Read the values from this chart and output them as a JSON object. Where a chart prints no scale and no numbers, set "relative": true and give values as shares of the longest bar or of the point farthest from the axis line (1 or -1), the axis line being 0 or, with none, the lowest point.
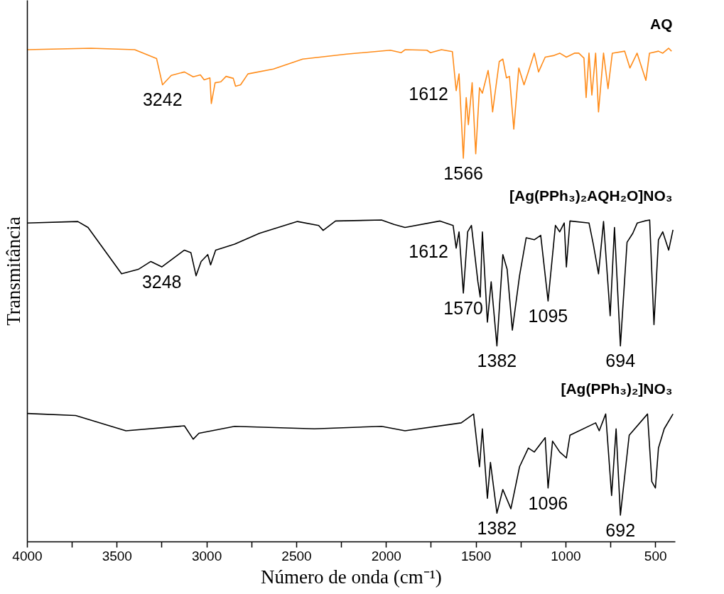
{
  "chart_data": {
    "type": "line",
    "relative": true,
    "xlabel": "Número de onda (cm⁻¹)",
    "ylabel": "Transmitância",
    "xlim": [
      4000,
      390
    ],
    "xticks": [
      4000,
      {
        "value": 3750,
        "label": null
      },
      3500,
      {
        "value": 3250,
        "label": null
      },
      3000,
      {
        "value": 2750,
        "label": null
      },
      2500,
      {
        "value": 2250,
        "label": null
      },
      2000,
      {
        "value": 1750,
        "label": null
      },
      1500,
      {
        "value": 1250,
        "label": null
      },
      1000,
      {
        "value": 750,
        "label": null
      },
      500
    ],
    "grid": false,
    "marker": "none",
    "line_style": "solid",
    "series": [
      {
        "name": "AQ",
        "color": "#ff8c1a",
        "x": [
          4000,
          3646,
          3402,
          3280,
          3247,
          3198,
          3125,
          3076,
          3036,
          3015,
          2983,
          2975,
          2954,
          2922,
          2893,
          2853,
          2840,
          2812,
          2771,
          2629,
          2466,
          2222,
          1978,
          1917,
          1896,
          1774,
          1754,
          1693,
          1632,
          1611,
          1595,
          1571,
          1555,
          1543,
          1522,
          1502,
          1481,
          1465,
          1433,
          1420,
          1408,
          1371,
          1351,
          1331,
          1314,
          1290,
          1262,
          1233,
          1209,
          1176,
          1152,
          1115,
          1070,
          1034,
          997,
          952,
          928,
          899,
          887,
          871,
          855,
          834,
          818,
          790,
          765,
          741,
          672,
          643,
          603,
          554,
          534,
          484,
          460,
          427,
          411
        ],
        "values": [
          0.997,
          1.0,
          0.997,
          0.979,
          0.926,
          0.945,
          0.952,
          0.942,
          0.946,
          0.936,
          0.94,
          0.888,
          0.93,
          0.932,
          0.943,
          0.939,
          0.923,
          0.926,
          0.948,
          0.958,
          0.978,
          0.988,
          0.996,
          0.991,
          0.997,
          0.996,
          0.991,
          0.997,
          0.993,
          0.914,
          0.948,
          0.777,
          0.9,
          0.845,
          0.93,
          0.786,
          0.92,
          0.909,
          0.955,
          0.92,
          0.871,
          0.973,
          0.978,
          0.94,
          0.943,
          0.836,
          0.96,
          0.926,
          0.952,
          0.99,
          0.952,
          0.982,
          0.985,
          0.99,
          0.982,
          0.99,
          0.99,
          0.98,
          0.9,
          0.99,
          0.905,
          0.99,
          0.871,
          0.99,
          0.918,
          0.99,
          0.994,
          0.96,
          0.99,
          0.935,
          0.99,
          0.994,
          0.99,
          1.0,
          0.994
        ]
      },
      {
        "name": "[Ag(PPh₃)₂AQH₂O]NO₃",
        "color": "#000000",
        "x": [
          4000,
          3719,
          3662,
          3475,
          3382,
          3312,
          3251,
          3125,
          3089,
          3060,
          3032,
          2995,
          2979,
          2951,
          2845,
          2707,
          2495,
          2377,
          2352,
          2283,
          2027,
          1957,
          1896,
          1701,
          1628,
          1611,
          1595,
          1571,
          1547,
          1526,
          1490,
          1477,
          1465,
          1437,
          1416,
          1384,
          1351,
          1327,
          1298,
          1258,
          1221,
          1176,
          1140,
          1099,
          1058,
          1034,
          1009,
          997,
          977,
          871,
          847,
          818,
          790,
          753,
          729,
          696,
          659,
          627,
          602,
          562,
          533,
          509,
          484,
          460,
          427,
          403
        ],
        "values": [
          0.646,
          0.649,
          0.637,
          0.543,
          0.552,
          0.568,
          0.557,
          0.591,
          0.586,
          0.539,
          0.568,
          0.582,
          0.561,
          0.591,
          0.603,
          0.625,
          0.649,
          0.641,
          0.631,
          0.65,
          0.652,
          0.643,
          0.637,
          0.65,
          0.641,
          0.595,
          0.628,
          0.504,
          0.628,
          0.641,
          0.527,
          0.496,
          0.628,
          0.445,
          0.527,
          0.397,
          0.582,
          0.552,
          0.429,
          0.539,
          0.616,
          0.612,
          0.621,
          0.488,
          0.641,
          0.628,
          0.646,
          0.557,
          0.65,
          0.646,
          0.603,
          0.543,
          0.649,
          0.458,
          0.637,
          0.397,
          0.607,
          0.625,
          0.646,
          0.65,
          0.652,
          0.44,
          0.612,
          0.628,
          0.591,
          0.632
        ]
      },
      {
        "name": "[Ag(PPh₃)₂]NO₃",
        "color": "#000000",
        "x": [
          4000,
          3731,
          3451,
          3125,
          3076,
          3044,
          2845,
          2401,
          2027,
          1896,
          1583,
          1514,
          1481,
          1465,
          1437,
          1420,
          1384,
          1351,
          1306,
          1258,
          1209,
          1176,
          1115,
          1099,
          1074,
          1034,
          997,
          977,
          834,
          814,
          778,
          745,
          720,
          696,
          647,
          545,
          521,
          501,
          484,
          452,
          403
        ],
        "values": [
          0.26,
          0.256,
          0.225,
          0.235,
          0.208,
          0.22,
          0.234,
          0.229,
          0.234,
          0.225,
          0.241,
          0.259,
          0.152,
          0.229,
          0.088,
          0.161,
          0.058,
          0.106,
          0.067,
          0.152,
          0.19,
          0.182,
          0.211,
          0.109,
          0.204,
          0.182,
          0.17,
          0.216,
          0.241,
          0.225,
          0.259,
          0.094,
          0.229,
          0.054,
          0.216,
          0.259,
          0.122,
          0.109,
          0.19,
          0.229,
          0.259
        ]
      }
    ],
    "annotations": [
      {
        "text": "3242",
        "x": 3247,
        "y": 0.926
      },
      {
        "text": "1612",
        "x": 1611,
        "y": 0.914
      },
      {
        "text": "1566",
        "x": 1571,
        "y": 0.777
      },
      {
        "text": "3248",
        "x": 3251,
        "y": 0.557
      },
      {
        "text": "1612",
        "x": 1611,
        "y": 0.595
      },
      {
        "text": "1570",
        "x": 1571,
        "y": 0.504
      },
      {
        "text": "1095",
        "x": 1099,
        "y": 0.488
      },
      {
        "text": "1382",
        "x": 1384,
        "y": 0.397
      },
      {
        "text": "694",
        "x": 696,
        "y": 0.397
      },
      {
        "text": "1382",
        "x": 1384,
        "y": 0.058
      },
      {
        "text": "1096",
        "x": 1099,
        "y": 0.109
      },
      {
        "text": "692",
        "x": 696,
        "y": 0.054
      }
    ]
  }
}
